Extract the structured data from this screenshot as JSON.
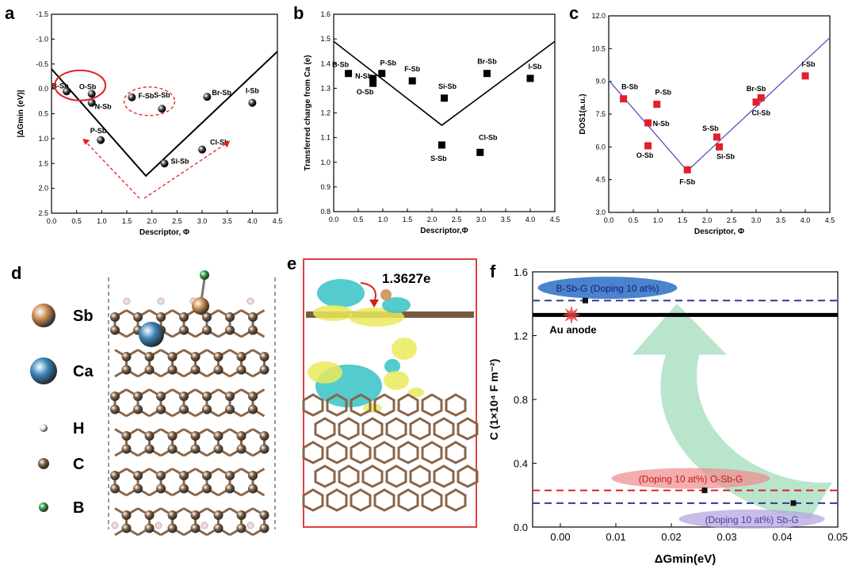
{
  "panels": {
    "a": {
      "letter": "a",
      "chart_data": {
        "type": "scatter",
        "xlabel": "Descriptor, Φ",
        "ylabel": "|ΔGmin (eV)|",
        "xlim": [
          0.0,
          4.5
        ],
        "ylim": [
          -1.5,
          2.5
        ],
        "y_inverted": true,
        "x_ticks": [
          "0.0",
          "0.5",
          "1.0",
          "1.5",
          "2.0",
          "2.5",
          "3.0",
          "3.5",
          "4.0",
          "4.5"
        ],
        "y_ticks": [
          "-1.5",
          "-1.0",
          "-0.5",
          "0.0",
          "0.5",
          "1.0",
          "1.5",
          "2.0",
          "2.5"
        ],
        "points": [
          {
            "label": "B-Sb",
            "x": 0.3,
            "y": 0.05
          },
          {
            "label": "O-Sb",
            "x": 0.8,
            "y": 0.1
          },
          {
            "label": "N-Sb",
            "x": 0.8,
            "y": 0.28
          },
          {
            "label": "P-Sb",
            "x": 0.98,
            "y": 1.03
          },
          {
            "label": "F-Sb",
            "x": 1.6,
            "y": 0.17
          },
          {
            "label": "S-Sb",
            "x": 2.2,
            "y": 0.4
          },
          {
            "label": "Si-Sb",
            "x": 2.25,
            "y": 1.5
          },
          {
            "label": "Cl-Sb",
            "x": 3.0,
            "y": 1.22
          },
          {
            "label": "Br-Sb",
            "x": 3.1,
            "y": 0.16
          },
          {
            "label": "I-Sb",
            "x": 4.0,
            "y": 0.28
          }
        ],
        "trend_line": [
          {
            "x": 0.0,
            "y": -0.4
          },
          {
            "x": 1.88,
            "y": 1.75
          },
          {
            "x": 4.5,
            "y": -0.75
          }
        ]
      }
    },
    "b": {
      "letter": "b",
      "chart_data": {
        "type": "scatter",
        "xlabel": "Descriptor,Φ",
        "ylabel": "Transferred charge from Ca (e)",
        "xlim": [
          0.0,
          4.5
        ],
        "ylim": [
          0.8,
          1.6
        ],
        "x_ticks": [
          "0.0",
          "0.5",
          "1.0",
          "1.5",
          "2.0",
          "2.5",
          "3.0",
          "3.5",
          "4.0",
          "4.5"
        ],
        "y_ticks": [
          "0.8",
          "0.9",
          "1.0",
          "1.1",
          "1.2",
          "1.3",
          "1.4",
          "1.5",
          "1.6"
        ],
        "points": [
          {
            "label": "B-Sb",
            "x": 0.3,
            "y": 1.36
          },
          {
            "label": "N-Sb",
            "x": 0.8,
            "y": 1.34
          },
          {
            "label": "O-Sb",
            "x": 0.8,
            "y": 1.32
          },
          {
            "label": "P-Sb",
            "x": 0.98,
            "y": 1.36
          },
          {
            "label": "F-Sb",
            "x": 1.6,
            "y": 1.33
          },
          {
            "label": "Si-Sb",
            "x": 2.25,
            "y": 1.26
          },
          {
            "label": "S-Sb",
            "x": 2.2,
            "y": 1.07
          },
          {
            "label": "Cl-Sb",
            "x": 2.98,
            "y": 1.04
          },
          {
            "label": "Br-Sb",
            "x": 3.12,
            "y": 1.36
          },
          {
            "label": "I-Sb",
            "x": 4.0,
            "y": 1.34
          }
        ],
        "trend_line": [
          {
            "x": 0.0,
            "y": 1.49
          },
          {
            "x": 2.2,
            "y": 1.15
          },
          {
            "x": 4.5,
            "y": 1.49
          }
        ]
      }
    },
    "c": {
      "letter": "c",
      "chart_data": {
        "type": "scatter",
        "xlabel": "Descriptor, Φ",
        "ylabel": "DOS1(a.u.)",
        "xlim": [
          0.0,
          4.5
        ],
        "ylim": [
          3.0,
          12.0
        ],
        "x_ticks": [
          "0.0",
          "0.5",
          "1.0",
          "1.5",
          "2.0",
          "2.5",
          "3.0",
          "3.5",
          "4.0",
          "4.5"
        ],
        "y_ticks": [
          "3.0",
          "4.5",
          "6.0",
          "7.5",
          "9.0",
          "10.5",
          "12.0"
        ],
        "points": [
          {
            "label": "B-Sb",
            "x": 0.3,
            "y": 8.2
          },
          {
            "label": "P-Sb",
            "x": 0.98,
            "y": 7.95
          },
          {
            "label": "N-Sb",
            "x": 0.8,
            "y": 7.1
          },
          {
            "label": "O-Sb",
            "x": 0.8,
            "y": 6.05
          },
          {
            "label": "F-Sb",
            "x": 1.6,
            "y": 4.95
          },
          {
            "label": "S-Sb",
            "x": 2.2,
            "y": 6.45
          },
          {
            "label": "Si-Sb",
            "x": 2.25,
            "y": 6.0
          },
          {
            "label": "Br-Sb",
            "x": 3.0,
            "y": 8.05
          },
          {
            "label": "Cl-Sb",
            "x": 3.1,
            "y": 8.25
          },
          {
            "label": "I-Sb",
            "x": 4.0,
            "y": 9.25
          }
        ],
        "trend_line": [
          {
            "x": 0.0,
            "y": 9.05
          },
          {
            "x": 1.6,
            "y": 4.9
          },
          {
            "x": 4.5,
            "y": 11.0
          }
        ],
        "colors": {
          "points": "#e0202a",
          "line": "#5a4fbf"
        }
      }
    },
    "d": {
      "letter": "d",
      "legend": [
        {
          "symbol": "Sb",
          "color": "#c98a4e",
          "size": "large"
        },
        {
          "symbol": "Ca",
          "color": "#3a84b8",
          "size": "large"
        },
        {
          "symbol": "H",
          "color": "#f2e6e6",
          "size": "small"
        },
        {
          "symbol": "C",
          "color": "#7a5a3e",
          "size": "small"
        },
        {
          "symbol": "B",
          "color": "#2e9a3a",
          "size": "small"
        }
      ]
    },
    "e": {
      "letter": "e",
      "annotation": "1.3627e"
    },
    "f": {
      "letter": "f",
      "chart_data": {
        "type": "scatter",
        "xlabel": "ΔGmin(eV)",
        "ylabel": "C (1×10⁴ F m⁻²)",
        "xlim": [
          -0.005,
          0.05
        ],
        "ylim": [
          0.0,
          1.6
        ],
        "x_ticks": [
          "0.00",
          "0.01",
          "0.02",
          "0.03",
          "0.04",
          "0.05"
        ],
        "y_ticks": [
          "0.0",
          "0.4",
          "0.8",
          "1.2",
          "1.6"
        ],
        "points": [
          {
            "label": "B-Sb-G (Doping 10 at%)",
            "x": 0.0045,
            "y": 1.42
          },
          {
            "label": "(Doping 10 at%) O-Sb-G",
            "x": 0.026,
            "y": 0.23
          },
          {
            "label": "(Doping 10 at%) Sb-G",
            "x": 0.042,
            "y": 0.15
          }
        ],
        "reference": {
          "label": "Au anode",
          "x": 0.002,
          "y": 1.33
        },
        "hlines": [
          {
            "y": 1.33,
            "style": "solid",
            "color": "#000000"
          },
          {
            "y": 1.42,
            "style": "dashed",
            "color": "#2b3a9e"
          },
          {
            "y": 0.23,
            "style": "dashed",
            "color": "#e02020"
          },
          {
            "y": 0.15,
            "style": "dashed",
            "color": "#2b3a9e"
          }
        ],
        "labels": {
          "b": "B-Sb-G (Doping 10 at%)",
          "o": "(Doping 10 at%) O-Sb-G",
          "s": "(Doping 10 at%)  Sb-G",
          "au": "Au  anode"
        }
      }
    }
  }
}
